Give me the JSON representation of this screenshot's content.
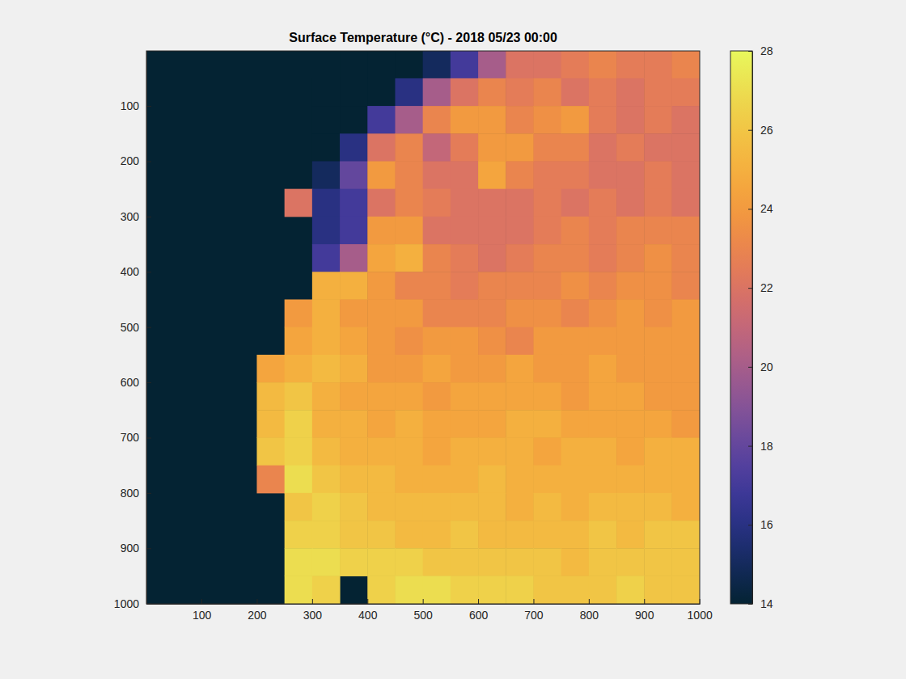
{
  "chart_data": {
    "type": "heatmap",
    "title": "Surface Temperature (°C) - 2018 05/23 00:00",
    "x": [
      25,
      75,
      125,
      175,
      225,
      275,
      325,
      375,
      425,
      475,
      525,
      575,
      625,
      675,
      725,
      775,
      825,
      875,
      925,
      975
    ],
    "y": [
      25,
      75,
      125,
      175,
      225,
      275,
      325,
      375,
      425,
      475,
      525,
      575,
      625,
      675,
      725,
      775,
      825,
      875,
      925,
      975
    ],
    "z": [
      [
        null,
        null,
        null,
        null,
        null,
        null,
        null,
        14,
        14,
        14,
        15,
        17,
        20,
        22,
        22,
        22.5,
        23,
        22.5,
        22.5,
        23
      ],
      [
        null,
        null,
        null,
        null,
        null,
        null,
        14,
        14,
        14,
        16,
        20,
        22,
        23,
        22.5,
        23,
        22,
        22.5,
        22,
        22.5,
        22.5
      ],
      [
        null,
        null,
        null,
        null,
        null,
        null,
        14,
        14,
        17,
        20,
        23,
        24,
        24,
        23,
        23.5,
        24,
        22.5,
        22,
        22.5,
        22
      ],
      [
        null,
        null,
        null,
        null,
        null,
        null,
        14,
        16,
        22,
        23,
        21,
        22.5,
        24,
        24,
        23,
        23,
        22,
        22.5,
        22,
        22
      ],
      [
        null,
        null,
        null,
        null,
        null,
        null,
        15,
        18,
        24,
        23,
        22,
        22,
        24.5,
        23,
        22.5,
        22.5,
        22,
        22,
        22.5,
        22
      ],
      [
        null,
        null,
        null,
        null,
        null,
        22,
        16,
        17,
        22,
        23,
        22.5,
        22,
        22,
        22,
        22.5,
        22,
        22.5,
        22,
        22.5,
        22
      ],
      [
        null,
        null,
        null,
        null,
        null,
        null,
        16,
        17,
        24,
        24,
        22,
        22,
        22,
        22,
        22.5,
        23,
        22.5,
        23,
        23,
        23
      ],
      [
        null,
        null,
        null,
        null,
        null,
        null,
        17,
        20,
        24.5,
        25,
        23,
        22.5,
        22,
        22.5,
        23,
        23,
        22.5,
        23,
        23.5,
        23
      ],
      [
        null,
        null,
        null,
        null,
        null,
        null,
        25,
        25,
        24,
        23,
        23,
        22.5,
        23,
        23,
        23,
        23.5,
        23,
        23.5,
        23.5,
        23
      ],
      [
        null,
        null,
        null,
        null,
        null,
        24,
        25,
        24,
        24,
        24,
        23,
        23,
        23,
        23.5,
        23.5,
        23,
        23.5,
        24,
        23.5,
        24
      ],
      [
        null,
        null,
        null,
        null,
        null,
        24.5,
        25,
        24.5,
        24,
        23.5,
        24,
        24,
        23.5,
        23,
        24,
        24,
        24,
        24,
        24,
        24
      ],
      [
        null,
        null,
        null,
        null,
        24.5,
        25,
        25.5,
        25,
        24,
        24,
        24.5,
        24,
        24,
        24.5,
        24,
        24,
        24.5,
        24,
        24,
        24
      ],
      [
        null,
        null,
        null,
        null,
        25.5,
        26,
        25,
        24.5,
        24.5,
        24.5,
        24,
        24.5,
        24.5,
        24.5,
        24.5,
        24,
        24.5,
        24.5,
        24,
        24
      ],
      [
        null,
        null,
        null,
        null,
        25.5,
        26.5,
        25,
        25,
        24.5,
        25,
        24.5,
        24.5,
        24.5,
        25,
        25,
        24.5,
        24.5,
        24.5,
        24.5,
        24
      ],
      [
        null,
        null,
        null,
        null,
        26,
        26.5,
        25.5,
        25,
        25,
        25,
        24.5,
        25,
        25,
        25,
        24.5,
        25,
        25,
        24.5,
        25,
        25
      ],
      [
        null,
        null,
        null,
        null,
        23,
        27,
        26,
        25.5,
        25.5,
        25,
        25,
        25,
        25.5,
        25,
        25,
        25,
        25,
        25,
        25,
        25
      ],
      [
        null,
        null,
        null,
        null,
        null,
        26,
        26.5,
        26,
        25.5,
        25.5,
        25.5,
        25.5,
        25.5,
        25,
        25.5,
        25,
        25.5,
        25.5,
        25.5,
        25
      ],
      [
        null,
        null,
        null,
        null,
        null,
        26.5,
        26.5,
        26,
        26,
        25.5,
        25.5,
        26,
        25.5,
        25.5,
        25.5,
        25.5,
        26,
        25.5,
        26,
        26
      ],
      [
        null,
        null,
        null,
        null,
        null,
        27,
        27,
        26.5,
        26.5,
        26.5,
        26,
        26,
        26,
        26,
        26,
        25.5,
        26,
        26,
        26,
        26
      ],
      [
        null,
        null,
        null,
        null,
        null,
        27,
        26.5,
        null,
        26.5,
        27,
        27,
        26.5,
        26.5,
        26.5,
        26,
        26,
        26,
        26.5,
        26,
        26
      ]
    ],
    "xlim": [
      0.5,
      1000.5
    ],
    "ylim": [
      0.5,
      1000.5
    ],
    "xticks": [
      100,
      200,
      300,
      400,
      500,
      600,
      700,
      800,
      900,
      1000
    ],
    "yticks": [
      100,
      200,
      300,
      400,
      500,
      600,
      700,
      800,
      900,
      1000
    ],
    "colorbar": {
      "range": [
        14,
        28
      ],
      "ticks": [
        14,
        16,
        18,
        20,
        22,
        24,
        26,
        28
      ]
    }
  }
}
